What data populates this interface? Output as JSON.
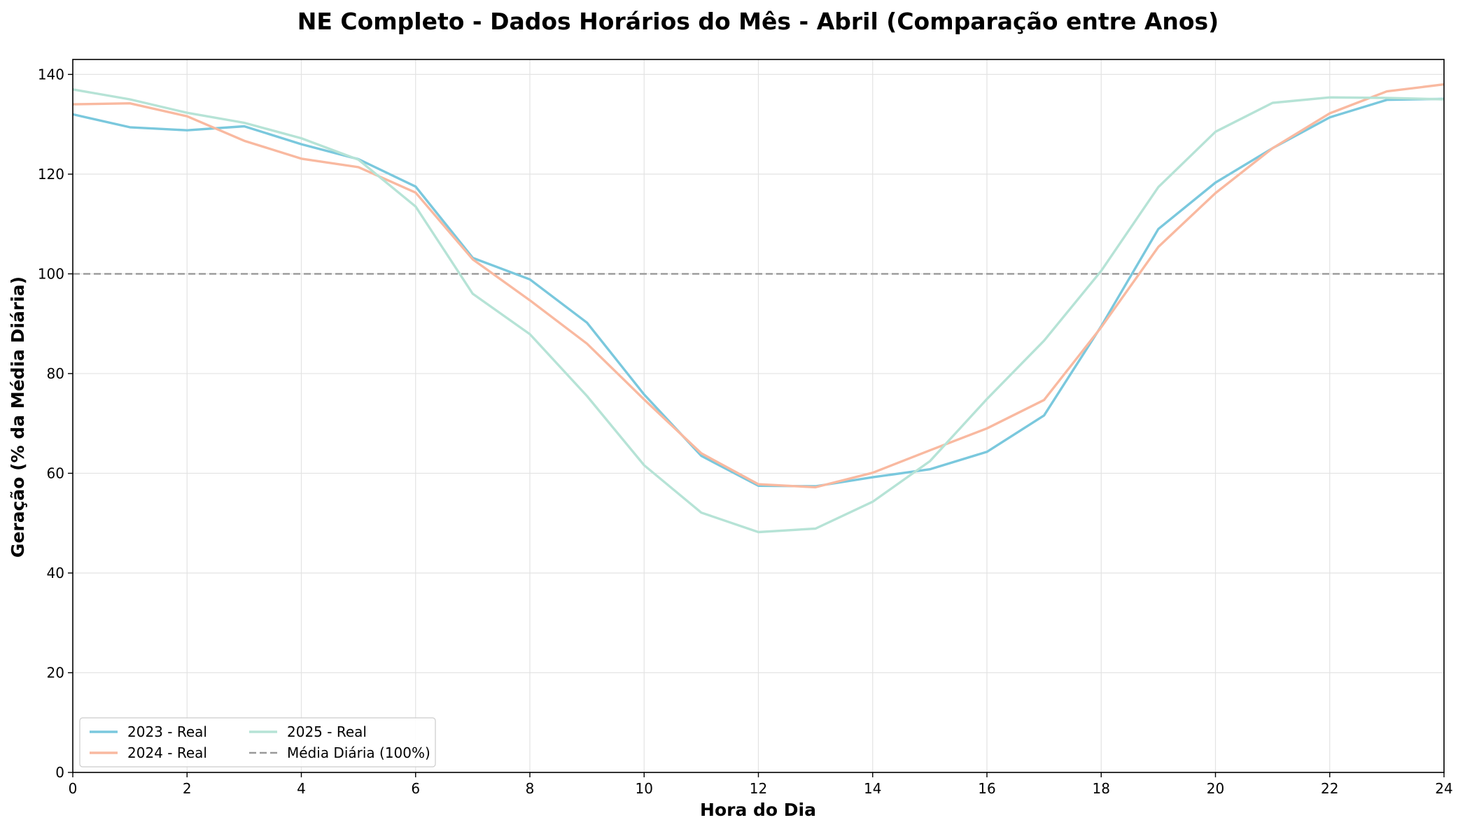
{
  "chart_data": {
    "type": "line",
    "title": "NE Completo - Dados Horários do Mês - Abril (Comparação entre Anos)",
    "xlabel": "Hora do Dia",
    "ylabel": "Geração (% da Média Diária)",
    "xlim": [
      0,
      24
    ],
    "ylim": [
      0,
      143
    ],
    "xticks": [
      0,
      2,
      4,
      6,
      8,
      10,
      12,
      14,
      16,
      18,
      20,
      22,
      24
    ],
    "yticks": [
      0,
      20,
      40,
      60,
      80,
      100,
      120,
      140
    ],
    "grid": true,
    "legend_position": "lower-left",
    "x": [
      0,
      1,
      2,
      3,
      4,
      5,
      6,
      7,
      8,
      9,
      10,
      11,
      12,
      13,
      14,
      15,
      16,
      17,
      18,
      19,
      20,
      21,
      22,
      23,
      24
    ],
    "series": [
      {
        "name": "2023 - Real",
        "color": "#7ac8dd",
        "style": "solid",
        "values": [
          132.0,
          129.4,
          128.8,
          129.6,
          126.0,
          123.0,
          117.5,
          103.2,
          98.9,
          90.2,
          75.8,
          63.5,
          57.5,
          57.4,
          59.2,
          60.8,
          64.3,
          71.6,
          89.5,
          109.0,
          118.3,
          125.2,
          131.4,
          134.9,
          135.1
        ]
      },
      {
        "name": "2024 - Real",
        "color": "#f9b9a0",
        "style": "solid",
        "values": [
          134.0,
          134.2,
          131.6,
          126.7,
          123.1,
          121.4,
          116.3,
          102.9,
          94.7,
          86.0,
          74.8,
          64.0,
          57.8,
          57.2,
          60.1,
          64.6,
          69.0,
          74.7,
          89.3,
          105.4,
          116.2,
          125.2,
          132.2,
          136.6,
          138.0
        ]
      },
      {
        "name": "2025 - Real",
        "color": "#b6e3d6",
        "style": "solid",
        "values": [
          137.0,
          135.0,
          132.3,
          130.3,
          127.2,
          122.9,
          113.5,
          96.0,
          87.9,
          75.5,
          61.6,
          52.1,
          48.2,
          48.9,
          54.3,
          62.4,
          74.9,
          86.6,
          100.6,
          117.4,
          128.5,
          134.3,
          135.4,
          135.3,
          135.0
        ]
      }
    ],
    "reference_line": {
      "name": "Média Diária (100%)",
      "value": 100,
      "color": "#999999",
      "style": "dashed"
    }
  }
}
